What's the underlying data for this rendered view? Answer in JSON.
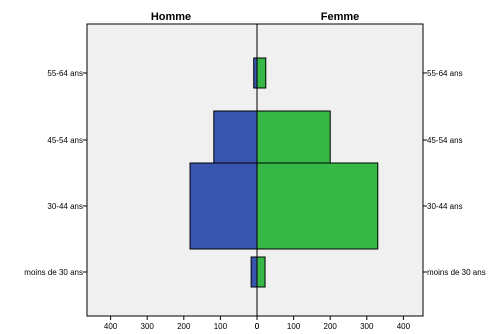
{
  "chart_data": {
    "type": "bar",
    "orientation": "horizontal",
    "layout": "population-pyramid",
    "title": "",
    "xlabel": "",
    "ylabel": "",
    "categories": [
      "55-64 ans",
      "45-54 ans",
      "30-44 ans",
      "moins de 30 ans"
    ],
    "series": [
      {
        "name": "Homme",
        "side": "left",
        "color": "#3a55b0",
        "values": [
          9,
          118,
          183,
          16
        ]
      },
      {
        "name": "Femme",
        "side": "right",
        "color": "#35b845",
        "values": [
          24,
          200,
          330,
          22
        ]
      }
    ],
    "left_axis_ticks": [
      400,
      300,
      200,
      100,
      0
    ],
    "right_axis_ticks": [
      0,
      100,
      200,
      300,
      400
    ],
    "xlim_left": [
      0,
      450
    ],
    "xlim_right": [
      0,
      450
    ],
    "plot_background": "#f0f0f0",
    "grid": false
  }
}
